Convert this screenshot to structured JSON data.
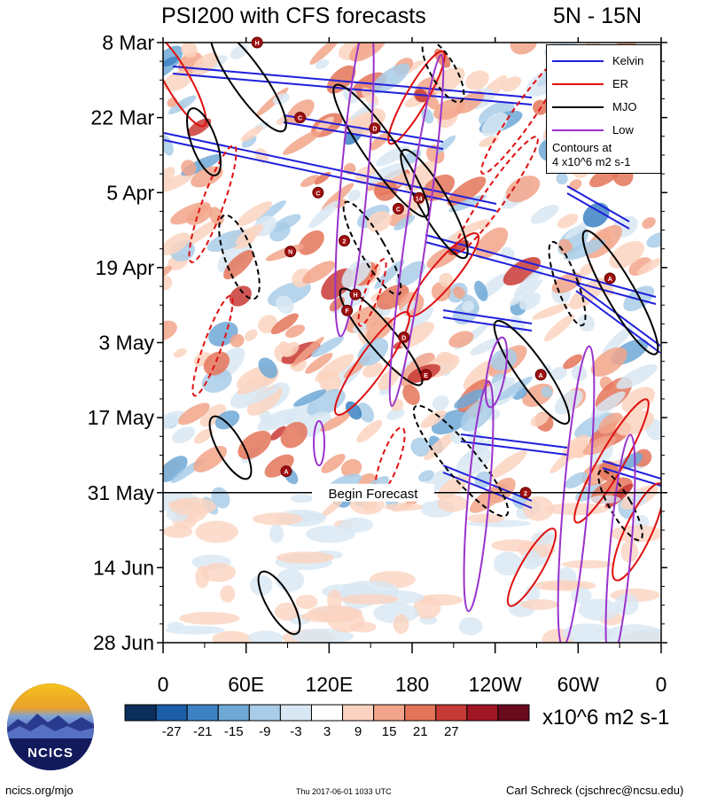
{
  "header": {
    "title": "PSI200 with CFS forecasts",
    "region": "5N - 15N"
  },
  "chart_data": {
    "type": "heatmap",
    "title": "PSI200 with CFS forecasts",
    "subtitle": "5N - 15N",
    "x_ticks": [
      "0",
      "60E",
      "120E",
      "180",
      "120W",
      "60W",
      "0"
    ],
    "x_tick_values": [
      0,
      60,
      120,
      180,
      240,
      300,
      360
    ],
    "xlim": [
      0,
      360
    ],
    "y_ticks": [
      "8 Mar",
      "22 Mar",
      "5 Apr",
      "19 Apr",
      "3 May",
      "17 May",
      "31 May",
      "14 Jun",
      "28 Jun"
    ],
    "y_tick_days": [
      0,
      14,
      28,
      42,
      56,
      70,
      84,
      98,
      112
    ],
    "ylim_days": [
      0,
      112
    ],
    "grid": false,
    "forecast_line": {
      "label": "Begin Forecast",
      "date": "31 May"
    },
    "legend": {
      "placement": "top-right",
      "entries": [
        {
          "name": "Kelvin",
          "color": "#1f1fdc"
        },
        {
          "name": "ER",
          "color": "#e01010"
        },
        {
          "name": "MJO",
          "color": "#000000"
        },
        {
          "name": "Low",
          "color": "#9932cc"
        }
      ],
      "note_line1": "Contours at",
      "note_line2": "4 x10^6 m2 s-1"
    },
    "colorbar": {
      "labels": [
        "-27",
        "-21",
        "-15",
        "-9",
        "-3",
        "3",
        "9",
        "15",
        "21",
        "27"
      ],
      "levels": [
        -27,
        -21,
        -15,
        -9,
        -3,
        3,
        9,
        15,
        21,
        27
      ],
      "colors": [
        "#0b2e5c",
        "#1c5ea8",
        "#3d82c4",
        "#6fa8d6",
        "#a9cde8",
        "#d8e7f3",
        "#ffffff",
        "#fbd3c0",
        "#f2a58a",
        "#e47459",
        "#c83a35",
        "#a01625",
        "#6a0a1c"
      ],
      "units": "x10^6 m2 s-1"
    },
    "storm_markers": [
      {
        "symbol": "H",
        "lon": 68,
        "day": 0
      },
      {
        "symbol": "C",
        "lon": 99,
        "day": 14
      },
      {
        "symbol": "D",
        "lon": 153,
        "day": 16
      },
      {
        "symbol": "C",
        "lon": 112,
        "day": 28
      },
      {
        "symbol": "C",
        "lon": 170,
        "day": 31
      },
      {
        "symbol": "14",
        "lon": 185,
        "day": 29
      },
      {
        "symbol": "2",
        "lon": 131,
        "day": 37
      },
      {
        "symbol": "N",
        "lon": 92,
        "day": 39
      },
      {
        "symbol": "A",
        "lon": 323,
        "day": 44
      },
      {
        "symbol": "H",
        "lon": 139,
        "day": 47
      },
      {
        "symbol": "F",
        "lon": 133,
        "day": 50
      },
      {
        "symbol": "D",
        "lon": 174,
        "day": 55
      },
      {
        "symbol": "E",
        "lon": 190,
        "day": 62
      },
      {
        "symbol": "A",
        "lon": 273,
        "day": 62
      },
      {
        "symbol": "A",
        "lon": 89,
        "day": 80
      },
      {
        "symbol": "2",
        "lon": 262,
        "day": 84
      }
    ]
  },
  "branding": {
    "logo_text": "NCICS",
    "url": "ncics.org/mjo",
    "timestamp": "Thu 2017-06-01 1033 UTC",
    "author": "Carl Schreck (cjschrec@ncsu.edu)"
  }
}
